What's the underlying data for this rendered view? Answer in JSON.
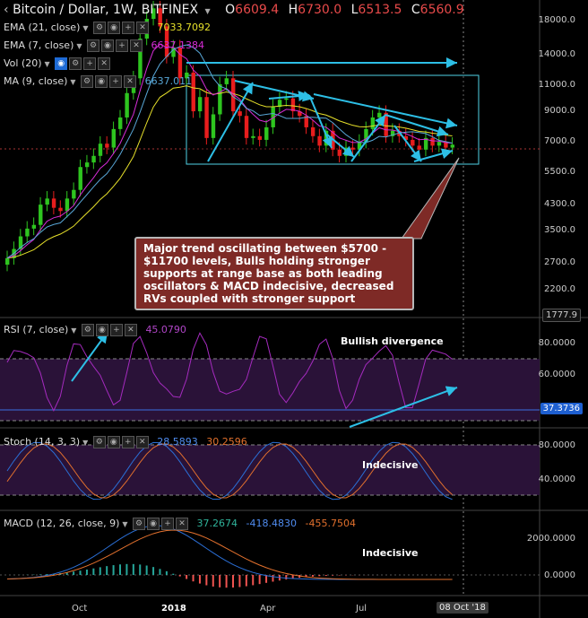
{
  "header": {
    "symbol": "Bitcoin / Dollar, 1W, BITFINEX",
    "o_label": "O",
    "o_value": "6609.4",
    "h_label": "H",
    "h_value": "6730.0",
    "l_label": "L",
    "l_value": "6513.5",
    "c_label": "C",
    "c_value": "6560.9"
  },
  "indicators": {
    "ema21": {
      "label": "EMA (21, close)",
      "value": "7033.7092"
    },
    "ema7": {
      "label": "EMA (7, close)",
      "value": "6637.1384"
    },
    "vol": {
      "label": "Vol (20)"
    },
    "ma9": {
      "label": "MA (9, close)",
      "value": "6637.011"
    }
  },
  "price_axis": [
    "18000.0",
    "14000.0",
    "11000.0",
    "9000.0",
    "7000.0",
    "5500.0",
    "4300.0",
    "3500.0",
    "2700.0",
    "2200.0"
  ],
  "price_last_tag": "1777.9",
  "annotation": "Major trend oscillating between $5700 - $11700 levels, Bulls holding stronger supports at range base as both leading oscillators & MACD indecisive, decreased RVs coupled with stronger support",
  "rsi": {
    "label": "RSI (7, close)",
    "value": "45.0790",
    "axis": [
      "80.0000",
      "60.0000"
    ],
    "tag": "37.3736",
    "note": "Bullish divergence"
  },
  "stoch": {
    "label": "Stoch (14, 3, 3)",
    "k": "28.5893",
    "d": "30.2596",
    "axis": [
      "80.0000",
      "40.0000"
    ],
    "note": "Indecisive"
  },
  "macd": {
    "label": "MACD (12, 26, close, 9)",
    "hist": "37.2674",
    "macd": "-418.4830",
    "signal": "-455.7504",
    "axis": [
      "2000.0000",
      "0.0000"
    ],
    "note": "Indecisive"
  },
  "time_axis": [
    "Oct",
    "2018",
    "Apr",
    "Jul"
  ],
  "date_tag": "08 Oct '18",
  "colors": {
    "up": "#2ec51f",
    "down": "#e81d1d",
    "ema21": "#e6e02a",
    "ema7": "#d52cd6",
    "ma9": "#58a6d6",
    "arrow": "#2dbfe6",
    "rsi_line": "#a52bbf",
    "stoch_k": "#2b6fd6",
    "stoch_d": "#e2702d",
    "panel_fill": "#2a1238"
  }
}
